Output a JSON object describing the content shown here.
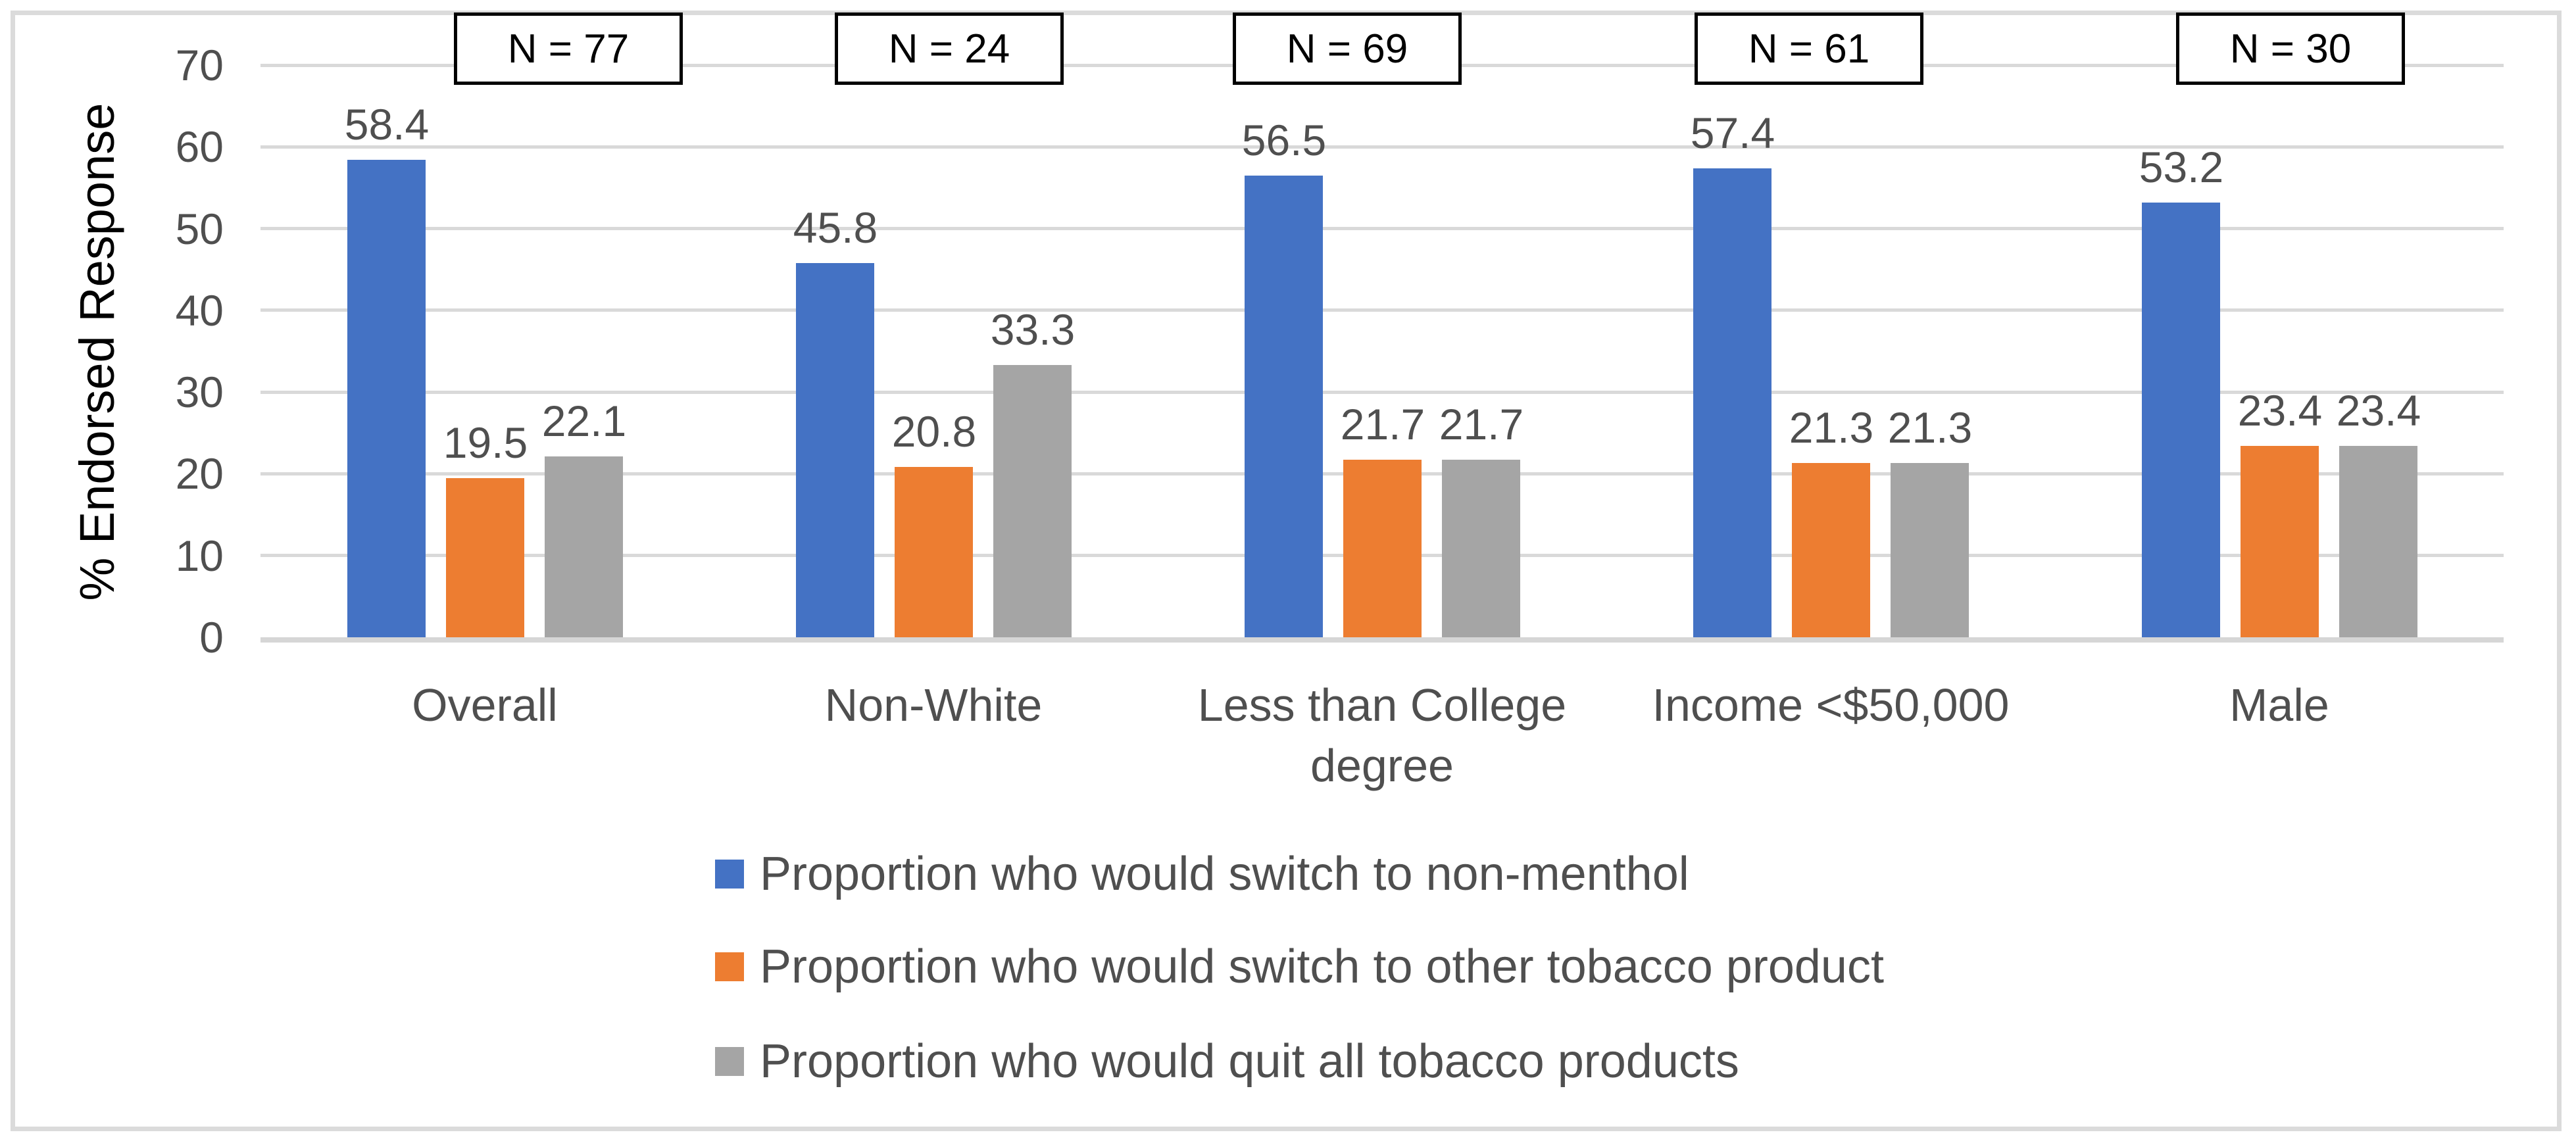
{
  "chart_data": {
    "type": "bar",
    "ylabel": "% Endorsed Response",
    "xlabel": "",
    "ylim": [
      0,
      70
    ],
    "yticks": [
      0,
      10,
      20,
      30,
      40,
      50,
      60,
      70
    ],
    "grid": "horizontal",
    "legend_position": "bottom-left",
    "categories": [
      "Overall",
      "Non-White",
      "Less than College degree",
      "Income <$50,000",
      "Male"
    ],
    "n_labels": [
      "N = 77",
      "N = 24",
      "N = 69",
      "N = 61",
      "N = 30"
    ],
    "series": [
      {
        "name": "Proportion who would switch to non-menthol",
        "color": "#4472C4",
        "values": [
          58.4,
          45.8,
          56.5,
          57.4,
          53.2
        ]
      },
      {
        "name": "Proportion who would switch to other tobacco product",
        "color": "#ED7D31",
        "values": [
          19.5,
          20.8,
          21.7,
          21.3,
          23.4
        ]
      },
      {
        "name": "Proportion who would quit all tobacco products",
        "color": "#A5A5A5",
        "values": [
          22.1,
          33.3,
          21.7,
          21.3,
          23.4
        ]
      }
    ],
    "colors": {
      "gridline": "#d9d9d9",
      "axis_line": "#d6d6d6",
      "chart_border": "#dbdbdb",
      "text": "#4f4f4f",
      "n_box_border": "#000000",
      "n_box_fill": "#ffffff",
      "background": "#ffffff"
    }
  }
}
